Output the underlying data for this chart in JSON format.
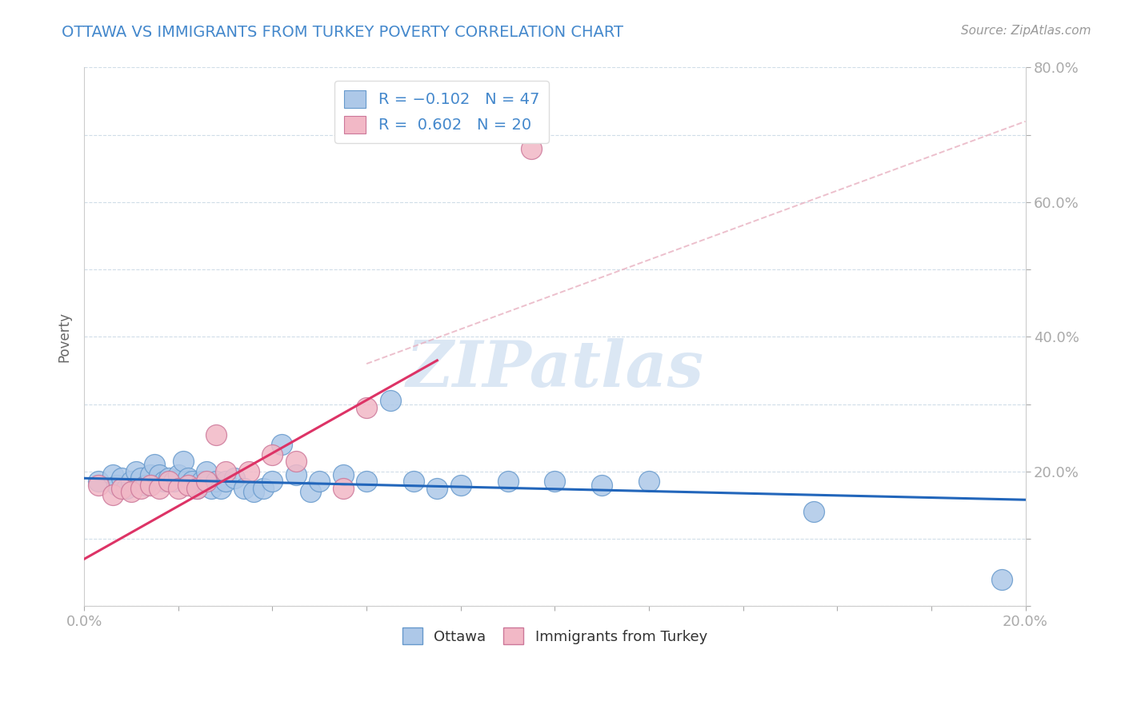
{
  "title": "OTTAWA VS IMMIGRANTS FROM TURKEY POVERTY CORRELATION CHART",
  "source": "Source: ZipAtlas.com",
  "ylabel": "Poverty",
  "xlim": [
    0.0,
    0.2
  ],
  "ylim": [
    0.0,
    0.8
  ],
  "xticks": [
    0.0,
    0.02,
    0.04,
    0.06,
    0.08,
    0.1,
    0.12,
    0.14,
    0.16,
    0.18,
    0.2
  ],
  "yticks": [
    0.0,
    0.1,
    0.2,
    0.3,
    0.4,
    0.5,
    0.6,
    0.7,
    0.8
  ],
  "ytick_labels_left": [
    "",
    "",
    "",
    "",
    "",
    "",
    "",
    "",
    ""
  ],
  "ytick_labels_right": [
    "",
    "",
    "20.0%",
    "",
    "40.0%",
    "",
    "60.0%",
    "",
    "80.0%"
  ],
  "xtick_labels": [
    "0.0%",
    "",
    "",
    "",
    "",
    "",
    "",
    "",
    "",
    "",
    "20.0%"
  ],
  "blue_fill": "#adc8e8",
  "blue_edge": "#6699cc",
  "pink_fill": "#f2b8c6",
  "pink_edge": "#cc7799",
  "blue_line_color": "#2266bb",
  "pink_line_color": "#dd3366",
  "pink_dash_color": "#e8b0c0",
  "watermark_color": "#ccddf0",
  "watermark_text": "ZIPatlas",
  "blue_scatter_x": [
    0.003,
    0.006,
    0.007,
    0.008,
    0.009,
    0.01,
    0.011,
    0.012,
    0.013,
    0.014,
    0.015,
    0.016,
    0.017,
    0.018,
    0.019,
    0.02,
    0.021,
    0.022,
    0.023,
    0.024,
    0.025,
    0.026,
    0.027,
    0.028,
    0.029,
    0.03,
    0.032,
    0.034,
    0.036,
    0.038,
    0.04,
    0.042,
    0.045,
    0.048,
    0.05,
    0.055,
    0.06,
    0.065,
    0.07,
    0.075,
    0.08,
    0.09,
    0.1,
    0.11,
    0.12,
    0.155,
    0.195
  ],
  "blue_scatter_y": [
    0.185,
    0.195,
    0.18,
    0.19,
    0.175,
    0.185,
    0.2,
    0.19,
    0.18,
    0.195,
    0.21,
    0.195,
    0.185,
    0.19,
    0.185,
    0.195,
    0.215,
    0.19,
    0.185,
    0.175,
    0.185,
    0.2,
    0.175,
    0.185,
    0.175,
    0.185,
    0.19,
    0.175,
    0.17,
    0.175,
    0.185,
    0.24,
    0.195,
    0.17,
    0.185,
    0.195,
    0.185,
    0.305,
    0.185,
    0.175,
    0.18,
    0.185,
    0.185,
    0.18,
    0.185,
    0.14,
    0.04
  ],
  "pink_scatter_x": [
    0.003,
    0.006,
    0.008,
    0.01,
    0.012,
    0.014,
    0.016,
    0.018,
    0.02,
    0.022,
    0.024,
    0.026,
    0.028,
    0.03,
    0.035,
    0.04,
    0.045,
    0.055,
    0.06,
    0.095
  ],
  "pink_scatter_y": [
    0.18,
    0.165,
    0.175,
    0.17,
    0.175,
    0.18,
    0.175,
    0.185,
    0.175,
    0.18,
    0.175,
    0.185,
    0.255,
    0.2,
    0.2,
    0.225,
    0.215,
    0.175,
    0.295,
    0.68
  ],
  "blue_line_x0": 0.0,
  "blue_line_x1": 0.2,
  "blue_line_y0": 0.19,
  "blue_line_y1": 0.158,
  "pink_line_x0": 0.0,
  "pink_line_x1": 0.075,
  "pink_line_y0": 0.07,
  "pink_line_y1": 0.365,
  "dash_line_x0": 0.06,
  "dash_line_x1": 0.2,
  "dash_line_y0": 0.36,
  "dash_line_y1": 0.72
}
